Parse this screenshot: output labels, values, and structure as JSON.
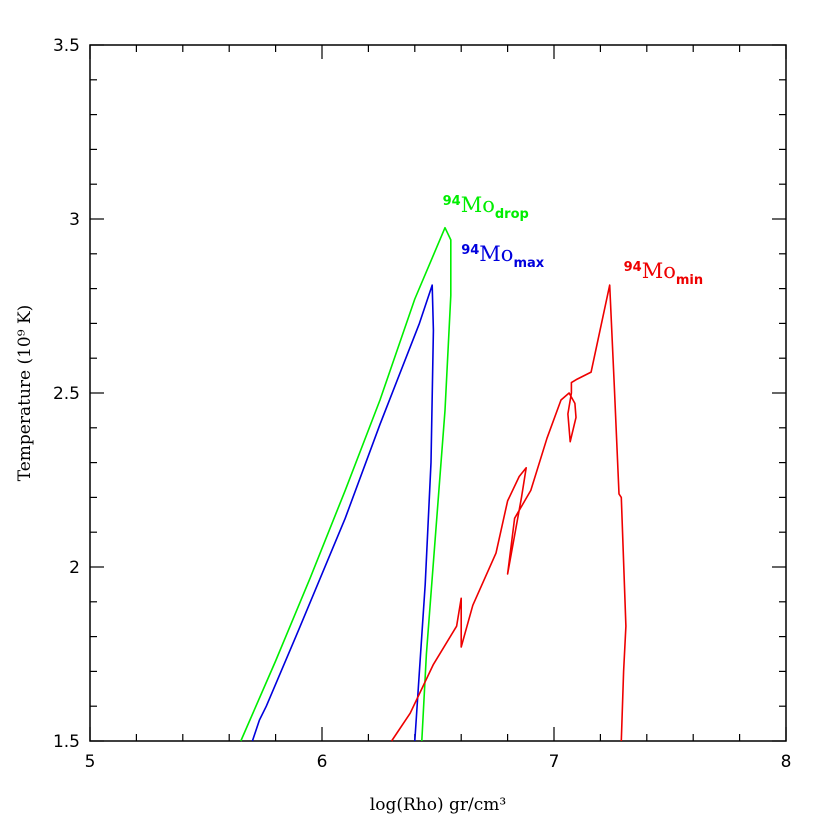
{
  "chart_data": {
    "type": "line",
    "title": "",
    "xlabel": "log(Rho) gr/cm³",
    "ylabel": "Temperature (10⁹ K)",
    "xlim": [
      5,
      8
    ],
    "ylim": [
      1.5,
      3.5
    ],
    "grid": false,
    "x_ticks": [
      "5",
      "6",
      "7",
      "8"
    ],
    "y_ticks": [
      "1.5",
      "2",
      "2.5",
      "3",
      "3.5"
    ],
    "series": [
      {
        "color": "#00ee00",
        "label": {
          "sup": "94",
          "base": "Mo",
          "sub": "drop",
          "at": [
            6.52,
            3.02
          ]
        },
        "x": [
          5.65,
          5.8,
          5.95,
          6.1,
          6.25,
          6.4,
          6.47,
          6.53,
          6.555,
          6.555,
          6.53,
          6.49,
          6.45,
          6.43
        ],
        "y": [
          1.5,
          1.73,
          1.97,
          2.22,
          2.48,
          2.77,
          2.88,
          2.975,
          2.94,
          2.78,
          2.45,
          2.1,
          1.75,
          1.5
        ]
      },
      {
        "color": "#0000dd",
        "label": {
          "sup": "94",
          "base": "Mo",
          "sub": "max",
          "at": [
            6.6,
            2.88
          ]
        },
        "x": [
          5.7,
          5.73,
          5.76,
          5.9,
          6.1,
          6.25,
          6.42,
          6.475,
          6.48,
          6.47,
          6.445,
          6.42,
          6.4
        ],
        "y": [
          1.5,
          1.56,
          1.6,
          1.82,
          2.14,
          2.41,
          2.7,
          2.81,
          2.68,
          2.3,
          1.95,
          1.7,
          1.5
        ]
      },
      {
        "color": "#ee0000",
        "label": {
          "sup": "94",
          "base": "Mo",
          "sub": "min",
          "at": [
            7.3,
            2.83
          ]
        },
        "x": [
          6.3,
          6.38,
          6.48,
          6.58,
          6.6,
          6.6,
          6.65,
          6.75,
          6.8,
          6.85,
          6.88,
          6.86,
          6.8,
          6.83,
          6.9,
          6.97,
          7.03,
          7.065,
          7.09,
          7.095,
          7.07,
          7.06,
          7.075,
          7.075,
          7.1,
          7.16,
          7.24,
          7.26,
          7.28,
          7.29,
          7.31,
          7.3,
          7.29
        ],
        "y": [
          1.5,
          1.58,
          1.72,
          1.83,
          1.91,
          1.77,
          1.89,
          2.04,
          2.19,
          2.26,
          2.285,
          2.2,
          1.98,
          2.14,
          2.22,
          2.37,
          2.48,
          2.5,
          2.47,
          2.43,
          2.36,
          2.44,
          2.5,
          2.53,
          2.54,
          2.56,
          2.81,
          2.52,
          2.21,
          2.2,
          1.83,
          1.7,
          1.5
        ]
      }
    ]
  }
}
